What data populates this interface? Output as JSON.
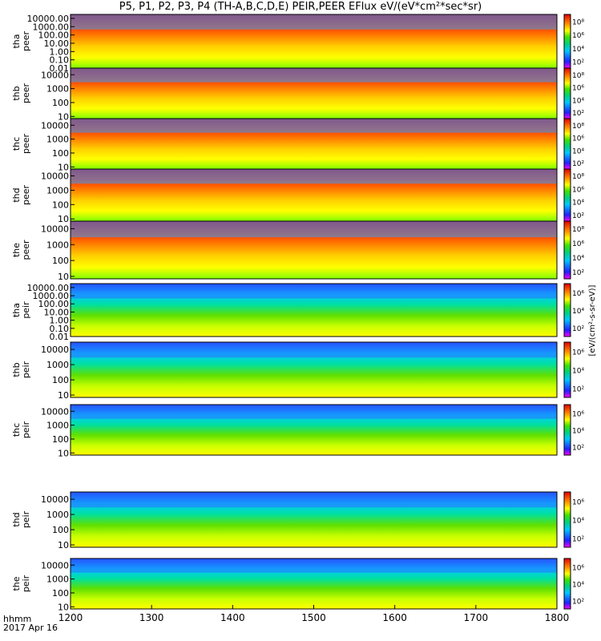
{
  "chart_data": {
    "type": "heatmap",
    "title": "P5, P1, P2, P3, P4 (TH-A,B,C,D,E) PEIR,PEER EFlux eV/(eV*cm²*sec*sr)",
    "x": {
      "label": "hhmm",
      "date": "2017 Apr 16",
      "range": [
        1200,
        1800
      ],
      "ticks": [
        "1200",
        "1300",
        "1400",
        "1500",
        "1600",
        "1700",
        "1800"
      ]
    },
    "colorbar_label": "[eV/(cm²-s-sr-eV)]",
    "colorbar_ticks": [
      "10²",
      "10⁴",
      "10⁶",
      "10⁸"
    ],
    "panels": [
      {
        "probe": "tha",
        "species": "peer",
        "ylabels": [
          "10000.00",
          "1000.00",
          "100.00",
          "10.00",
          "1.00",
          "0.10",
          "0.01"
        ],
        "ylim": [
          0.01,
          30000
        ],
        "colorbar_ticks": [
          "10²",
          "10⁴",
          "10⁶",
          "10⁸"
        ]
      },
      {
        "probe": "thb",
        "species": "peer",
        "ylabels": [
          "10000",
          "1000",
          "100",
          "10"
        ],
        "ylim": [
          7,
          30000
        ],
        "colorbar_ticks": [
          "10²",
          "10⁴",
          "10⁶",
          "10⁸"
        ]
      },
      {
        "probe": "thc",
        "species": "peer",
        "ylabels": [
          "10000",
          "1000",
          "100",
          "10"
        ],
        "ylim": [
          7,
          30000
        ],
        "colorbar_ticks": [
          "10²",
          "10⁴",
          "10⁶",
          "10⁸"
        ]
      },
      {
        "probe": "thd",
        "species": "peer",
        "ylabels": [
          "10000",
          "1000",
          "100",
          "10"
        ],
        "ylim": [
          7,
          30000
        ],
        "colorbar_ticks": [
          "10²",
          "10⁴",
          "10⁶",
          "10⁸"
        ]
      },
      {
        "probe": "the",
        "species": "peer",
        "ylabels": [
          "10000",
          "1000",
          "100",
          "10"
        ],
        "ylim": [
          7,
          30000
        ],
        "colorbar_ticks": [
          "10²",
          "10⁴",
          "10⁶",
          "10⁸"
        ]
      },
      {
        "probe": "tha",
        "species": "peir",
        "ylabels": [
          "10000.00",
          "1000.00",
          "100.00",
          "10.00",
          "1.00",
          "0.10",
          "0.01"
        ],
        "ylim": [
          0.01,
          30000
        ],
        "colorbar_ticks": [
          "10²",
          "10⁴",
          "10⁶"
        ]
      },
      {
        "probe": "thb",
        "species": "peir",
        "ylabels": [
          "10000",
          "1000",
          "100",
          "10"
        ],
        "ylim": [
          7,
          30000
        ],
        "colorbar_ticks": [
          "10²",
          "10⁴",
          "10⁶"
        ]
      },
      {
        "probe": "thc",
        "species": "peir",
        "ylabels": [
          "10000",
          "1000",
          "100",
          "10"
        ],
        "ylim": [
          7,
          30000
        ],
        "colorbar_ticks": [
          "10²",
          "10⁴",
          "10⁶"
        ]
      },
      {
        "probe": "thd",
        "species": "peir",
        "ylabels": [
          "10000",
          "1000",
          "100",
          "10"
        ],
        "ylim": [
          7,
          30000
        ],
        "colorbar_ticks": [
          "10²",
          "10⁴",
          "10⁶"
        ]
      },
      {
        "probe": "the",
        "species": "peir",
        "ylabels": [
          "10000",
          "1000",
          "100",
          "10"
        ],
        "ylim": [
          7,
          30000
        ],
        "colorbar_ticks": [
          "10²",
          "10⁴",
          "10⁶"
        ]
      }
    ]
  }
}
